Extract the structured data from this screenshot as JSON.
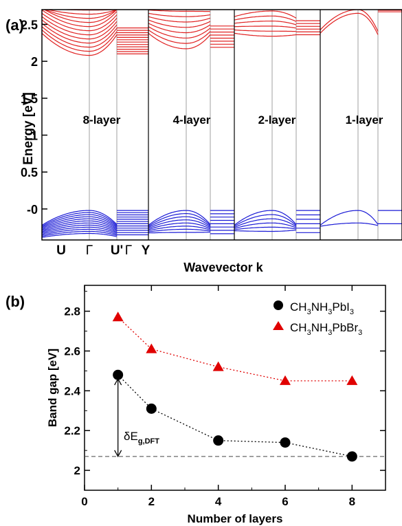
{
  "chart_data": [
    {
      "panel_label": "(a)",
      "type": "line",
      "xlabel": "Wavevector k",
      "ylabel": "Energy [eV]",
      "ylim": [
        -0.42,
        2.7
      ],
      "yticks": [
        "-0",
        "0.5",
        "1",
        "1.5",
        "2",
        "2.5"
      ],
      "ytick_values": [
        0,
        0.5,
        1,
        1.5,
        2,
        2.5
      ],
      "kpoint_labels": [
        "U",
        "Γ",
        "U'",
        "Γ",
        "Y"
      ],
      "subpanel_labels": [
        "8-layer",
        "4-layer",
        "2-layer",
        "1-layer"
      ],
      "colors": {
        "conduction": "#e02020",
        "valence": "#1a1ad6",
        "grid": "#888888"
      },
      "conduction_band_minimum": [
        2.08,
        2.17,
        2.34,
        2.65
      ],
      "valence_band_maximum": [
        -0.02,
        -0.02,
        -0.02,
        -0.02
      ]
    },
    {
      "panel_label": "(b)",
      "type": "scatter",
      "xlabel": "Number of layers",
      "ylabel": "Band gap [eV]",
      "xlim": [
        0,
        9
      ],
      "ylim": [
        1.9,
        2.93
      ],
      "xticks": [
        0,
        2,
        4,
        6,
        8
      ],
      "yticks": [
        "2",
        "2.2",
        "2.4",
        "2.6",
        "2.8"
      ],
      "ytick_values": [
        2.0,
        2.2,
        2.4,
        2.6,
        2.8
      ],
      "legend_position": "top-right",
      "series": [
        {
          "name_base": "CH",
          "name_sub1": "3",
          "name_mid": "NH",
          "name_sub2": "3",
          "name_tail": "PbI",
          "name_sub3": "3",
          "marker": "circle",
          "color": "#000000",
          "line_color": "#000000",
          "x": [
            1,
            2,
            4,
            6,
            8
          ],
          "y": [
            2.48,
            2.31,
            2.15,
            2.14,
            2.07
          ]
        },
        {
          "name_base": "CH",
          "name_sub1": "3",
          "name_mid": "NH",
          "name_sub2": "3",
          "name_tail": "PbBr",
          "name_sub3": "3",
          "marker": "triangle",
          "color": "#e00000",
          "line_color": "#e00000",
          "x": [
            1,
            2,
            4,
            6,
            8
          ],
          "y": [
            2.77,
            2.61,
            2.52,
            2.45,
            2.45
          ]
        }
      ],
      "reference_line_y": 2.07,
      "annotation": {
        "base": "δE",
        "sub": "g,DFT",
        "from_y": 2.07,
        "to_y": 2.46,
        "x": 1
      }
    }
  ]
}
